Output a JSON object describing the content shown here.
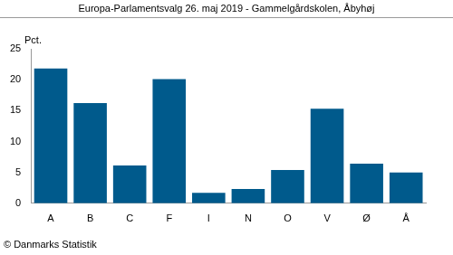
{
  "chart_data": {
    "type": "bar",
    "title": "Europa-Parlamentsvalg 26. maj 2019 - Gammelgårdskolen, Åbyhøj",
    "ylabel": "Pct.",
    "caption": "© Danmarks Statistik",
    "categories": [
      "A",
      "B",
      "C",
      "F",
      "I",
      "N",
      "O",
      "V",
      "Ø",
      "Å"
    ],
    "values": [
      21.8,
      16.2,
      6.1,
      20.1,
      1.7,
      2.3,
      5.4,
      15.3,
      6.4,
      5.0
    ],
    "color": "#005a8c",
    "ylim": [
      0,
      25
    ],
    "yticks": [
      0,
      5,
      10,
      15,
      20,
      25
    ],
    "grid": false
  }
}
